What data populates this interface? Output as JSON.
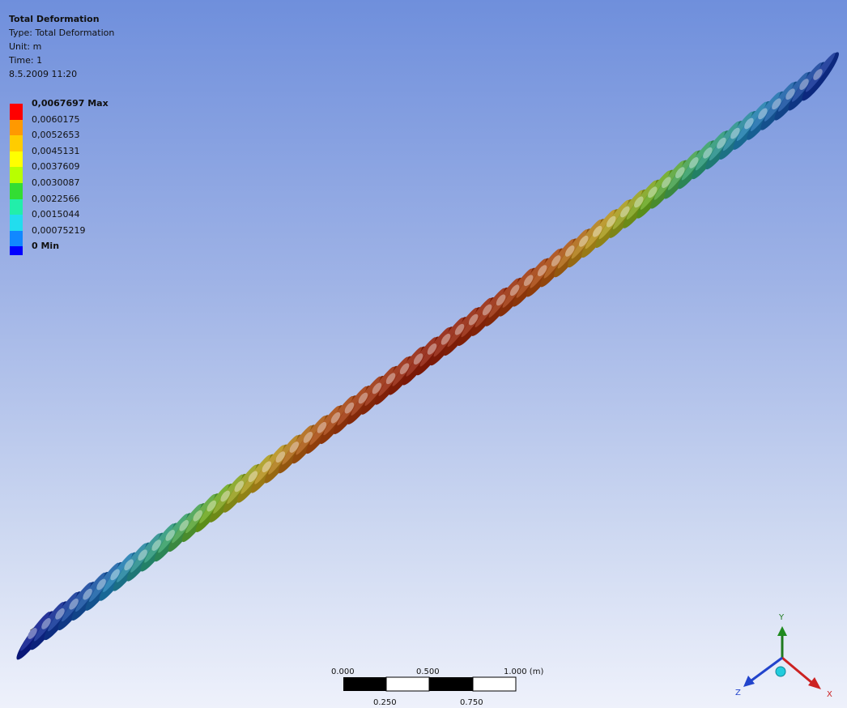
{
  "result": {
    "title": "Total Deformation",
    "type_line": "Type: Total Deformation",
    "unit_line": "Unit: m",
    "time_line": "Time: 1",
    "date_line": "8.5.2009 11:20"
  },
  "legend": {
    "entries": [
      {
        "label": "0,0067697 Max",
        "color": "#ff0000",
        "bold": true
      },
      {
        "label": "0,0060175",
        "color": "#ff9900",
        "bold": false
      },
      {
        "label": "0,0052653",
        "color": "#ffcc00",
        "bold": false
      },
      {
        "label": "0,0045131",
        "color": "#ffff00",
        "bold": false
      },
      {
        "label": "0,0037609",
        "color": "#b8ff00",
        "bold": false
      },
      {
        "label": "0,0030087",
        "color": "#33dd33",
        "bold": false
      },
      {
        "label": "0,0022566",
        "color": "#22eeaa",
        "bold": false
      },
      {
        "label": "0,0015044",
        "color": "#22ddee",
        "bold": false
      },
      {
        "label": "0,00075219",
        "color": "#1188ff",
        "bold": false
      },
      {
        "label": "0 Min",
        "color": "#0000ff",
        "bold": true
      }
    ]
  },
  "model": {
    "description_colors": {
      "min": "#0a1a8c",
      "low": "#1c7ab0",
      "mid_low": "#2c9c6c",
      "mid": "#6aa61c",
      "mid_high": "#b5961a",
      "high": "#a8480d",
      "max": "#8e1a07"
    },
    "deformation_profile": [
      0,
      0.12,
      0.35,
      0.58,
      0.78,
      0.92,
      1.0,
      0.95,
      0.82,
      0.62,
      0.4,
      0.18,
      0.04
    ]
  },
  "scale_bar": {
    "top_labels": [
      "0.000",
      "0.500",
      "1.000 (m)"
    ],
    "bottom_labels": [
      "0.250",
      "0.750"
    ]
  },
  "triad": {
    "x_label": "X",
    "y_label": "Y",
    "z_label": "Z",
    "x_color": "#cc2222",
    "y_color": "#1f7a1f",
    "z_color": "#2244cc"
  }
}
